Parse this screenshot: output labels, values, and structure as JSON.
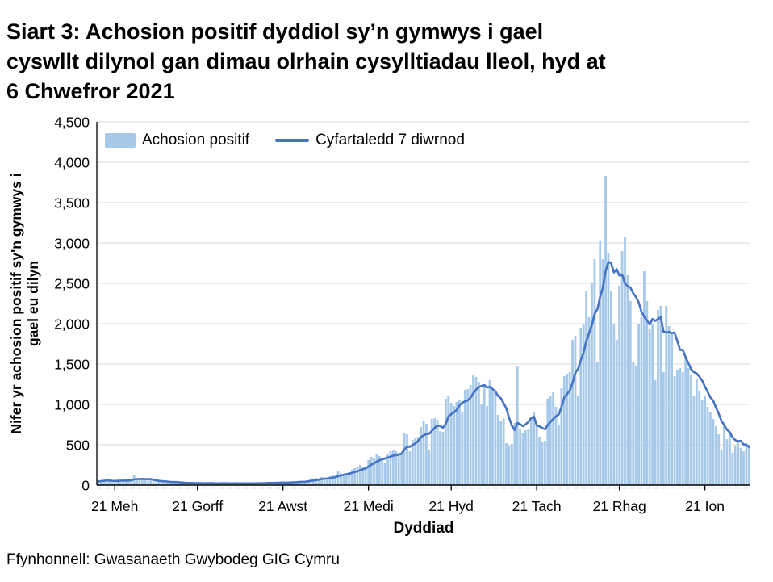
{
  "title_lines": [
    "Siart 3: Achosion positif dyddiol sy’n gymwys i gael",
    "cyswllt dilynol gan dimau olrhain cysylltiadau lleol, hyd at",
    "6 Chwefror 2021"
  ],
  "footer": "Ffynhonnell: Gwasanaeth Gwybodeg GIG Cymru",
  "colors": {
    "bar": "#A6C9EA",
    "line": "#4472C4",
    "gridline": "#D9D9D9",
    "axis": "#000000"
  },
  "legend": {
    "items": [
      {
        "label": "Achosion positif",
        "type": "bar"
      },
      {
        "label": "Cyfartaledd 7 diwrnod",
        "type": "line"
      }
    ]
  },
  "y_axis": {
    "title_lines": [
      "Nifer yr achosion positif sy'n gymwys i",
      "gael eu dilyn"
    ],
    "tick_labels": [
      "0",
      "500",
      "1,000",
      "1,500",
      "2,000",
      "2,500",
      "3,000",
      "3,500",
      "4,000",
      "4,500"
    ],
    "tick_values": [
      0,
      500,
      1000,
      1500,
      2000,
      2500,
      3000,
      3500,
      4000,
      4500
    ]
  },
  "x_axis": {
    "title": "Dyddiad",
    "tick_labels": [
      "21 Meh",
      "21 Gorff",
      "21 Awst",
      "21 Medi",
      "21 Hyd",
      "21 Tach",
      "21 Rhag",
      "21 Ion"
    ],
    "tick_day_indices": [
      6,
      36,
      67,
      98,
      128,
      159,
      189,
      220
    ]
  },
  "chart_data": {
    "type": "bar",
    "title": "Achosion positif dyddiol sy'n gymwys i gael cyswllt dilynol, hyd at 6 Chwefror 2021",
    "xlabel": "Dyddiad",
    "ylabel": "Nifer yr achosion positif sy'n gymwys i gael eu dilyn",
    "ylim": [
      0,
      4500
    ],
    "grid": "horizontal",
    "legend_position": "top-left-inside",
    "x_description": "un bar y dydd (daily bars), o ganol Mehefin 2020 hyd at 6 Chwefror 2021",
    "series": [
      {
        "name": "Achosion positif",
        "type": "bar",
        "values": [
          45,
          55,
          60,
          75,
          50,
          35,
          40,
          55,
          70,
          65,
          80,
          60,
          45,
          120,
          85,
          70,
          75,
          65,
          55,
          60,
          45,
          35,
          40,
          45,
          50,
          40,
          30,
          25,
          35,
          30,
          25,
          30,
          25,
          20,
          15,
          25,
          30,
          25,
          20,
          25,
          30,
          20,
          15,
          20,
          25,
          30,
          25,
          20,
          15,
          20,
          25,
          20,
          25,
          30,
          20,
          15,
          20,
          25,
          30,
          25,
          30,
          35,
          25,
          20,
          30,
          35,
          40,
          35,
          30,
          25,
          35,
          45,
          50,
          55,
          45,
          40,
          60,
          70,
          80,
          90,
          85,
          100,
          75,
          65,
          110,
          130,
          120,
          180,
          150,
          135,
          120,
          160,
          190,
          210,
          230,
          250,
          220,
          200,
          310,
          350,
          330,
          380,
          360,
          300,
          280,
          390,
          420,
          430,
          420,
          400,
          380,
          650,
          630,
          420,
          560,
          580,
          600,
          720,
          800,
          760,
          430,
          820,
          830,
          810,
          670,
          660,
          1070,
          1100,
          1020,
          980,
          1030,
          1050,
          900,
          1180,
          1190,
          1240,
          1370,
          1340,
          1280,
          1000,
          1250,
          980,
          1300,
          1180,
          1150,
          870,
          800,
          830,
          520,
          480,
          510,
          770,
          1480,
          700,
          650,
          680,
          700,
          830,
          900,
          730,
          600,
          530,
          550,
          1070,
          1100,
          1150,
          970,
          750,
          1200,
          1350,
          1380,
          1400,
          1800,
          1850,
          1100,
          1950,
          2000,
          2400,
          2080,
          2500,
          2800,
          1520,
          3030,
          2800,
          3830,
          2870,
          2400,
          2000,
          1800,
          2470,
          2900,
          3080,
          2600,
          2280,
          1520,
          1470,
          2000,
          2080,
          2650,
          2280,
          1930,
          2000,
          1300,
          2170,
          2220,
          1400,
          2220,
          1970,
          1900,
          1350,
          1430,
          1450,
          1400,
          1600,
          1450,
          1370,
          1100,
          1320,
          1170,
          1050,
          1100,
          970,
          900,
          820,
          730,
          630,
          430,
          730,
          570,
          670,
          400,
          480,
          530,
          460,
          420,
          520,
          500
        ]
      },
      {
        "name": "Cyfartaledd 7 diwrnod",
        "type": "line",
        "derivation": "cyfartaledd treigl 7 diwrnod o'r gyfres farrau uchod (7-day rolling mean of the bar series)"
      }
    ]
  }
}
